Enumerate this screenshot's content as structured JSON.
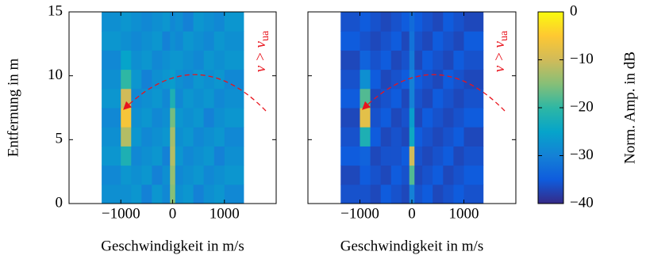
{
  "chart_data": [
    {
      "type": "heatmap",
      "xlabel": "Geschwindigkeit in m/s",
      "ylabel": "Entfernung in m",
      "annotation": "v > v",
      "annotation_sub": "ua",
      "xlim": [
        -2000,
        2000
      ],
      "ylim": [
        0,
        15
      ],
      "xticks": [
        {
          "value": -1000,
          "label": "−1000"
        },
        0,
        1000
      ],
      "yticks": [
        0,
        5,
        10,
        15
      ],
      "ytick_labels": true,
      "x_edges": [
        -1370,
        -1000,
        -800,
        -600,
        -400,
        -200,
        -50,
        50,
        200,
        400,
        600,
        800,
        1000,
        1370
      ],
      "y_edges": [
        0,
        1.5,
        3,
        4.5,
        6,
        7.5,
        9,
        10.5,
        12,
        13.5,
        15
      ],
      "z": [
        [
          -28,
          -28,
          -27,
          -30,
          -27,
          -29,
          -15,
          -28,
          -27,
          -30,
          -28,
          -27,
          -29
        ],
        [
          -29,
          -27,
          -28,
          -27,
          -30,
          -28,
          -14,
          -29,
          -28,
          -27,
          -29,
          -28,
          -27
        ],
        [
          -27,
          -22,
          -29,
          -28,
          -27,
          -30,
          -12,
          -27,
          -29,
          -28,
          -27,
          -30,
          -28
        ],
        [
          -28,
          -12,
          -27,
          -29,
          -28,
          -27,
          -13,
          -28,
          -27,
          -29,
          -28,
          -27,
          -29
        ],
        [
          -29,
          -6,
          -28,
          -27,
          -29,
          -28,
          -16,
          -27,
          -28,
          -27,
          -30,
          -28,
          -27
        ],
        [
          -27,
          -10,
          -29,
          -28,
          -27,
          -29,
          -22,
          -29,
          -27,
          -28,
          -27,
          -29,
          -28
        ],
        [
          -28,
          -20,
          -27,
          -30,
          -28,
          -27,
          -26,
          -28,
          -29,
          -27,
          -28,
          -27,
          -29
        ],
        [
          -29,
          -25,
          -28,
          -27,
          -29,
          -28,
          -27,
          -27,
          -28,
          -29,
          -27,
          -28,
          -27
        ],
        [
          -27,
          -28,
          -29,
          -28,
          -27,
          -30,
          -28,
          -29,
          -27,
          -28,
          -29,
          -27,
          -28
        ],
        [
          -28,
          -27,
          -28,
          -29,
          -28,
          -27,
          -29,
          -28,
          -30,
          -27,
          -28,
          -29,
          -27
        ]
      ]
    },
    {
      "type": "heatmap",
      "xlabel": "Geschwindigkeit in m/s",
      "annotation": "v > v",
      "annotation_sub": "ua",
      "xlim": [
        -2000,
        2000
      ],
      "ylim": [
        0,
        15
      ],
      "xticks": [
        {
          "value": -1000,
          "label": "−1000"
        },
        0,
        1000
      ],
      "yticks": [
        0,
        5,
        10,
        15
      ],
      "ytick_labels": false,
      "x_edges": [
        -1370,
        -1000,
        -800,
        -600,
        -400,
        -200,
        -50,
        50,
        200,
        400,
        600,
        800,
        1000,
        1370
      ],
      "y_edges": [
        0,
        1.5,
        3,
        4.5,
        6,
        7.5,
        9,
        10.5,
        12,
        13.5,
        15
      ],
      "z": [
        [
          -36,
          -36,
          -37,
          -35,
          -36,
          -37,
          -30,
          -36,
          -35,
          -37,
          -36,
          -35,
          -36
        ],
        [
          -37,
          -35,
          -36,
          -37,
          -35,
          -36,
          -18,
          -37,
          -36,
          -35,
          -37,
          -36,
          -35
        ],
        [
          -35,
          -34,
          -37,
          -36,
          -36,
          -35,
          -10,
          -36,
          -37,
          -36,
          -35,
          -37,
          -36
        ],
        [
          -36,
          -22,
          -35,
          -37,
          -36,
          -37,
          -24,
          -35,
          -36,
          -37,
          -36,
          -35,
          -37
        ],
        [
          -37,
          -8,
          -36,
          -35,
          -37,
          -36,
          -26,
          -37,
          -35,
          -36,
          -37,
          -36,
          -35
        ],
        [
          -35,
          -18,
          -37,
          -36,
          -35,
          -37,
          -30,
          -36,
          -37,
          -35,
          -36,
          -37,
          -36
        ],
        [
          -36,
          -28,
          -35,
          -37,
          -36,
          -35,
          -30,
          -35,
          -36,
          -37,
          -35,
          -36,
          -37
        ],
        [
          -37,
          -34,
          -36,
          -35,
          -37,
          -36,
          -31,
          -37,
          -35,
          -36,
          -37,
          -35,
          -36
        ],
        [
          -35,
          -36,
          -37,
          -36,
          -35,
          -37,
          -32,
          -36,
          -37,
          -35,
          -36,
          -37,
          -35
        ],
        [
          -36,
          -35,
          -36,
          -37,
          -36,
          -35,
          -33,
          -35,
          -36,
          -37,
          -35,
          -36,
          -37
        ]
      ],
      "colorbar": {
        "label": "Norm. Amp. in dB",
        "lim": [
          -40,
          0
        ],
        "ticks": [
          0,
          {
            "value": -10,
            "label": "−10"
          },
          {
            "value": -20,
            "label": "−20"
          },
          {
            "value": -30,
            "label": "−30"
          },
          {
            "value": -40,
            "label": "−40"
          }
        ]
      }
    }
  ]
}
